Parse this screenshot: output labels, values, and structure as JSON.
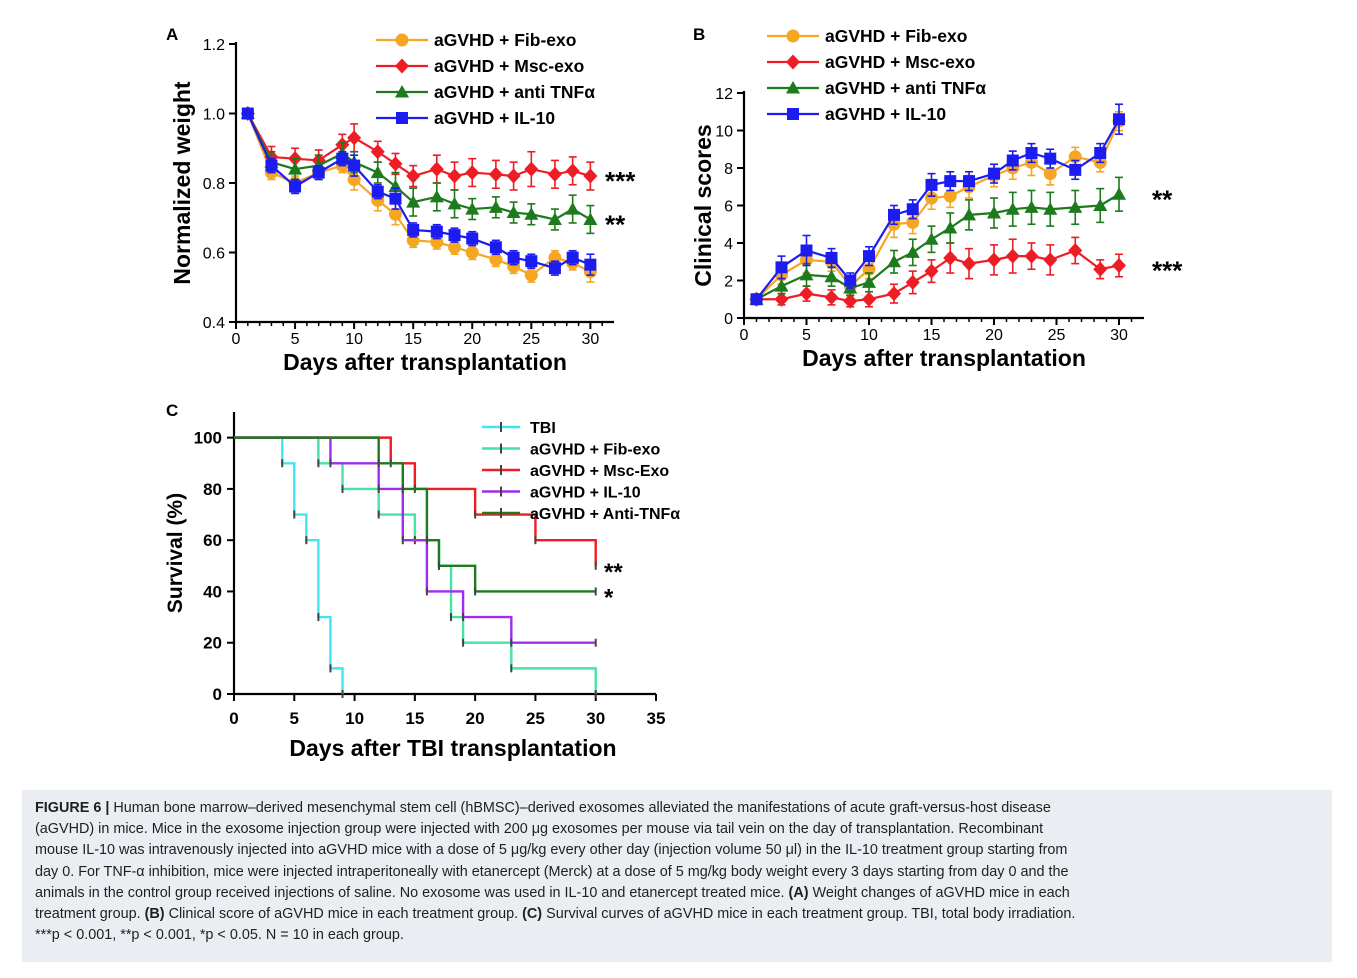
{
  "chart_data": [
    {
      "panel": "A",
      "type": "line",
      "xlabel": "Days after transplantation",
      "ylabel": "Normalized weight",
      "xlim": [
        0,
        32
      ],
      "ylim": [
        0.4,
        1.2
      ],
      "x_ticks": [
        "0",
        "5",
        "10",
        "15",
        "20",
        "25",
        "30"
      ],
      "y_ticks": [
        "0.4",
        "0.6",
        "0.8",
        "1.0",
        "1.2"
      ],
      "legend_position": "top-right",
      "series": [
        {
          "name": "aGVHD + Fib-exo",
          "color": "#f5a623",
          "marker": "circle",
          "x": [
            1,
            3,
            5,
            7,
            9,
            10,
            12,
            13.5,
            15,
            17,
            18.5,
            20,
            22,
            23.5,
            25,
            27,
            28.5,
            30
          ],
          "y": [
            1.0,
            0.83,
            0.8,
            0.83,
            0.85,
            0.81,
            0.75,
            0.71,
            0.635,
            0.63,
            0.615,
            0.6,
            0.58,
            0.56,
            0.535,
            0.585,
            0.57,
            0.545
          ],
          "err": [
            0,
            0.02,
            0.02,
            0.02,
            0.02,
            0.03,
            0.03,
            0.03,
            0.02,
            0.02,
            0.02,
            0.02,
            0.02,
            0.02,
            0.02,
            0.02,
            0.02,
            0.03
          ]
        },
        {
          "name": "aGVHD + Msc-exo",
          "color": "#ee1c25",
          "marker": "diamond",
          "x": [
            1,
            3,
            5,
            7,
            9,
            10,
            12,
            13.5,
            15,
            17,
            18.5,
            20,
            22,
            23.5,
            25,
            27,
            28.5,
            30
          ],
          "y": [
            1.0,
            0.875,
            0.87,
            0.865,
            0.91,
            0.93,
            0.89,
            0.855,
            0.82,
            0.84,
            0.82,
            0.83,
            0.825,
            0.82,
            0.84,
            0.825,
            0.835,
            0.82
          ],
          "err": [
            0,
            0.03,
            0.03,
            0.03,
            0.03,
            0.04,
            0.03,
            0.03,
            0.03,
            0.04,
            0.04,
            0.04,
            0.04,
            0.04,
            0.05,
            0.04,
            0.04,
            0.04
          ]
        },
        {
          "name": "aGVHD + anti TNFα",
          "color": "#1d7a1d",
          "marker": "triangle",
          "x": [
            1,
            3,
            5,
            7,
            9,
            10,
            12,
            13.5,
            15,
            17,
            18.5,
            20,
            22,
            23.5,
            25,
            27,
            28.5,
            30
          ],
          "y": [
            1.0,
            0.86,
            0.84,
            0.85,
            0.885,
            0.86,
            0.83,
            0.79,
            0.745,
            0.76,
            0.74,
            0.725,
            0.73,
            0.715,
            0.71,
            0.695,
            0.725,
            0.695
          ],
          "err": [
            0,
            0.03,
            0.03,
            0.03,
            0.03,
            0.03,
            0.03,
            0.04,
            0.04,
            0.04,
            0.04,
            0.03,
            0.03,
            0.03,
            0.03,
            0.03,
            0.04,
            0.04
          ]
        },
        {
          "name": "aGVHD + IL-10",
          "color": "#1c1cf0",
          "marker": "square",
          "x": [
            1,
            3,
            5,
            7,
            9,
            10,
            12,
            13.5,
            15,
            17,
            18.5,
            20,
            22,
            23.5,
            25,
            27,
            28.5,
            30
          ],
          "y": [
            1.0,
            0.85,
            0.79,
            0.83,
            0.87,
            0.85,
            0.775,
            0.755,
            0.665,
            0.66,
            0.65,
            0.64,
            0.615,
            0.585,
            0.575,
            0.555,
            0.585,
            0.565
          ],
          "err": [
            0,
            0.02,
            0.02,
            0.02,
            0.02,
            0.03,
            0.02,
            0.03,
            0.02,
            0.02,
            0.02,
            0.02,
            0.02,
            0.02,
            0.02,
            0.02,
            0.02,
            0.03
          ]
        }
      ],
      "annotations": [
        {
          "text": "***",
          "y": 0.82
        },
        {
          "text": "**",
          "y": 0.695
        }
      ]
    },
    {
      "panel": "B",
      "type": "line",
      "xlabel": "Days after transplantation",
      "ylabel": "Clinical scores",
      "xlim": [
        0,
        32
      ],
      "ylim": [
        0,
        12
      ],
      "x_ticks": [
        "0",
        "5",
        "10",
        "15",
        "20",
        "25",
        "30"
      ],
      "y_ticks": [
        "0",
        "2",
        "4",
        "6",
        "8",
        "10",
        "12"
      ],
      "legend_position": "top-left",
      "series": [
        {
          "name": "aGVHD + Fib-exo",
          "color": "#f5a623",
          "marker": "circle",
          "x": [
            1,
            3,
            5,
            7,
            8.5,
            10,
            12,
            13.5,
            15,
            16.5,
            18,
            20,
            21.5,
            23,
            24.5,
            26.5,
            28.5,
            30
          ],
          "y": [
            1.0,
            2.3,
            3.1,
            3.0,
            1.7,
            2.6,
            5.0,
            5.1,
            6.4,
            6.5,
            7.0,
            7.6,
            8.0,
            8.3,
            7.7,
            8.6,
            8.3,
            10.5
          ],
          "err": [
            0,
            0.5,
            0.7,
            0.5,
            0.4,
            0.5,
            0.7,
            0.6,
            0.6,
            0.6,
            0.6,
            0.6,
            0.6,
            0.7,
            0.6,
            0.5,
            0.5,
            0.5
          ]
        },
        {
          "name": "aGVHD + Msc-exo",
          "color": "#ee1c25",
          "marker": "diamond",
          "x": [
            1,
            3,
            5,
            7,
            8.5,
            10,
            12,
            13.5,
            15,
            16.5,
            18,
            20,
            21.5,
            23,
            24.5,
            26.5,
            28.5,
            30
          ],
          "y": [
            1.0,
            1.0,
            1.3,
            1.1,
            0.9,
            1.0,
            1.3,
            1.9,
            2.5,
            3.2,
            2.9,
            3.1,
            3.3,
            3.3,
            3.1,
            3.6,
            2.6,
            2.8
          ],
          "err": [
            0,
            0.3,
            0.4,
            0.4,
            0.3,
            0.4,
            0.5,
            0.6,
            0.6,
            0.8,
            0.8,
            0.8,
            0.9,
            0.7,
            0.8,
            0.7,
            0.5,
            0.6
          ]
        },
        {
          "name": "aGVHD + anti TNFα",
          "color": "#1d7a1d",
          "marker": "triangle",
          "x": [
            1,
            3,
            5,
            7,
            8.5,
            10,
            12,
            13.5,
            15,
            16.5,
            18,
            20,
            21.5,
            23,
            24.5,
            26.5,
            28.5,
            30
          ],
          "y": [
            1.0,
            1.7,
            2.3,
            2.2,
            1.6,
            1.9,
            3.0,
            3.5,
            4.2,
            4.8,
            5.5,
            5.6,
            5.8,
            5.9,
            5.8,
            5.9,
            6.0,
            6.6
          ],
          "err": [
            0,
            0.4,
            0.6,
            0.5,
            0.4,
            0.5,
            0.6,
            0.7,
            0.7,
            0.8,
            0.8,
            0.8,
            0.9,
            0.9,
            0.9,
            0.9,
            0.9,
            0.9
          ]
        },
        {
          "name": "aGVHD + IL-10",
          "color": "#1c1cf0",
          "marker": "square",
          "x": [
            1,
            3,
            5,
            7,
            8.5,
            10,
            12,
            13.5,
            15,
            16.5,
            18,
            20,
            21.5,
            23,
            24.5,
            26.5,
            28.5,
            30
          ],
          "y": [
            1.0,
            2.7,
            3.6,
            3.2,
            2.0,
            3.3,
            5.5,
            5.8,
            7.1,
            7.3,
            7.3,
            7.7,
            8.4,
            8.8,
            8.5,
            7.9,
            8.8,
            10.6
          ],
          "err": [
            0,
            0.6,
            0.8,
            0.5,
            0.4,
            0.5,
            0.5,
            0.5,
            0.6,
            0.5,
            0.5,
            0.5,
            0.5,
            0.5,
            0.5,
            0.5,
            0.5,
            0.8
          ]
        }
      ],
      "annotations": [
        {
          "text": "**",
          "y": 6.6
        },
        {
          "text": "***",
          "y": 2.8
        }
      ]
    },
    {
      "panel": "C",
      "type": "line",
      "xlabel": "Days after TBI transplantation",
      "ylabel": "Survival (%)",
      "xlim": [
        0,
        35
      ],
      "ylim": [
        0,
        110
      ],
      "x_ticks": [
        "0",
        "5",
        "10",
        "15",
        "20",
        "25",
        "30",
        "35"
      ],
      "y_ticks": [
        "0",
        "20",
        "40",
        "60",
        "80",
        "100"
      ],
      "legend_position": "top-right",
      "series": [
        {
          "name": "TBI",
          "color": "#3ee6f2",
          "times": [
            0,
            4,
            5,
            6,
            7,
            8,
            9
          ],
          "values": [
            100,
            90,
            70,
            60,
            30,
            10,
            0
          ]
        },
        {
          "name": "aGVHD + Fib-exo",
          "color": "#46e3a2",
          "times": [
            0,
            7,
            9,
            12,
            15,
            17,
            18,
            19,
            23,
            30
          ],
          "values": [
            100,
            90,
            80,
            70,
            60,
            50,
            30,
            20,
            10,
            0
          ]
        },
        {
          "name": "aGVHD + Msc-Exo",
          "color": "#ee1c25",
          "times": [
            0,
            13,
            15,
            20,
            25,
            30
          ],
          "values": [
            100,
            90,
            80,
            70,
            60,
            50
          ]
        },
        {
          "name": "aGVHD + IL-10",
          "color": "#a12cf0",
          "times": [
            0,
            8,
            12,
            14,
            16,
            19,
            23,
            30
          ],
          "values": [
            100,
            90,
            80,
            60,
            40,
            30,
            20,
            20
          ]
        },
        {
          "name": "aGVHD + Anti-TNFα",
          "color": "#1d7a1d",
          "times": [
            0,
            12,
            14,
            16,
            17,
            20,
            30
          ],
          "values": [
            100,
            90,
            80,
            60,
            50,
            40,
            40
          ]
        }
      ],
      "annotations": [
        {
          "text": "**",
          "y": 50
        },
        {
          "text": "*",
          "y": 40
        }
      ]
    }
  ],
  "panel_labels": {
    "a": "A",
    "b": "B",
    "c": "C"
  },
  "caption": {
    "fig_label": "FIGURE 6 |",
    "line1": " Human bone marrow–derived mesenchymal stem cell (hBMSC)–derived exosomes alleviated the manifestations of acute graft-versus-host disease",
    "line2": "(aGVHD) in mice. Mice in the exosome injection group were injected with 200 μg exosomes per mouse via tail vein on the day of transplantation. Recombinant",
    "line3": "mouse IL-10 was intravenously injected into aGVHD mice with a dose of 5 μg/kg every other day (injection volume 50 μl) in the IL-10 treatment group starting from",
    "line4": "day 0. For TNF-α inhibition, mice were injected intraperitoneally with etanercept (Merck) at a dose of 5 mg/kg body weight every 3 days starting from day 0 and the",
    "line5": "animals in the control group received injections of saline. No exosome was used in IL-10 and etanercept treated mice. ",
    "a_label": "(A)",
    "a_text": " Weight changes of aGVHD mice in each",
    "line6_pre": "treatment group. ",
    "b_label": "(B)",
    "b_text": " Clinical score of aGVHD mice in each treatment group. ",
    "c_label": "(C)",
    "c_text": " Survival curves of aGVHD mice in each treatment group. TBI, total body irradiation.",
    "line7": "***p < 0.001, **p < 0.001, *p < 0.05. N = 10 in each group."
  }
}
